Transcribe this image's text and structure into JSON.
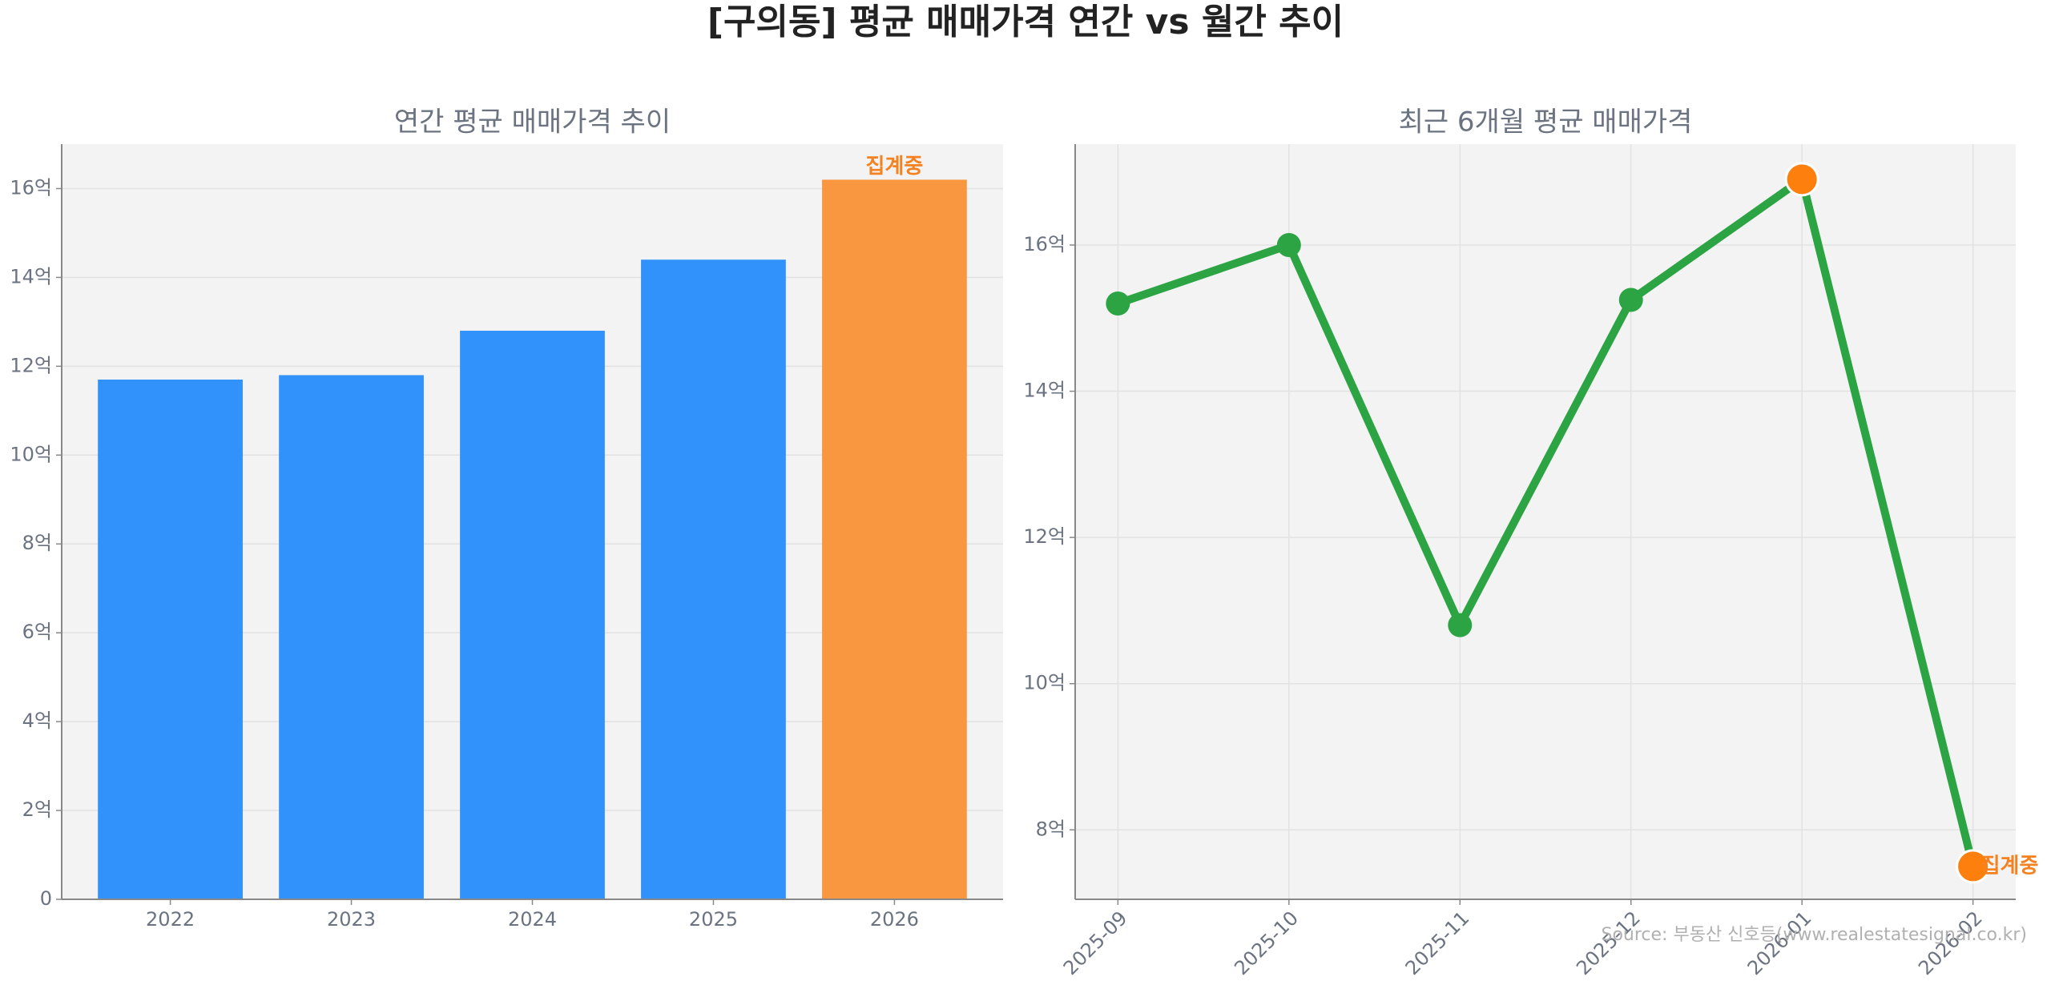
{
  "title": "[구의동] 평균 매매가격 연간 vs 월간 추이",
  "source": "Source: 부동산 신호등(www.realestatesignal.co.kr)",
  "chart_data": [
    {
      "type": "bar",
      "title": "연간 평균 매매가격 추이",
      "categories": [
        "2022",
        "2023",
        "2024",
        "2025",
        "2026"
      ],
      "values": [
        11.7,
        11.8,
        12.8,
        14.4,
        16.2
      ],
      "colors": [
        "#3192fb",
        "#3192fb",
        "#3192fb",
        "#3192fb",
        "#f99740"
      ],
      "annotation": "집계중",
      "annotation_color": "#f58220",
      "ylim": [
        0,
        17
      ],
      "yticks": [
        0,
        {
          "value": 2,
          "label": "2억"
        },
        {
          "value": 4,
          "label": "4억"
        },
        {
          "value": 6,
          "label": "6억"
        },
        {
          "value": 8,
          "label": "8억"
        },
        {
          "value": 10,
          "label": "10억"
        },
        {
          "value": 12,
          "label": "12억"
        },
        {
          "value": 14,
          "label": "14억"
        },
        {
          "value": 16,
          "label": "16억"
        }
      ],
      "grid": true
    },
    {
      "type": "line",
      "title": "최근 6개월 평균 매매가격",
      "categories": [
        "2025-09",
        "2025-10",
        "2025-11",
        "2025-12",
        "2026-01",
        "2026-02"
      ],
      "values": [
        15.2,
        16.0,
        10.8,
        15.25,
        16.9,
        7.5
      ],
      "color": "#2ca444",
      "colors": [
        "#2ca444",
        "#2ca444",
        "#2ca444",
        "#2ca444",
        "#fd7f0e",
        "#fd7f0e"
      ],
      "annotation": "집계중",
      "annotation_color": "#f58220",
      "ylim": [
        7.05,
        17.38
      ],
      "yticks": [
        {
          "value": 8,
          "label": "8억"
        },
        {
          "value": 10,
          "label": "10억"
        },
        {
          "value": 12,
          "label": "12억"
        },
        {
          "value": 14,
          "label": "14억"
        },
        {
          "value": 16,
          "label": "16억"
        }
      ],
      "grid": true
    }
  ]
}
